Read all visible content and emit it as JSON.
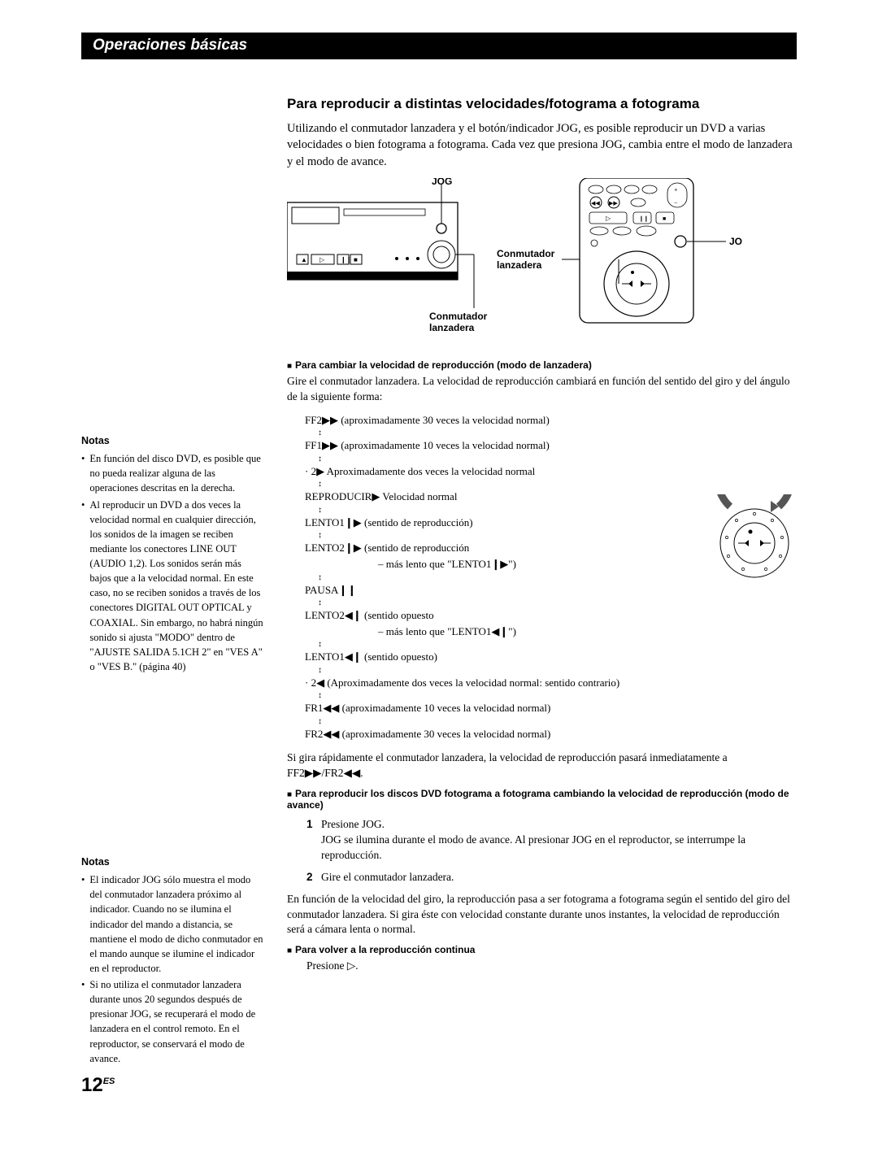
{
  "header": {
    "title": "Operaciones básicas"
  },
  "notes1": {
    "title": "Notas",
    "items": [
      "En función del disco DVD, es posible que no pueda realizar alguna de las operaciones descritas en la derecha.",
      "Al reproducir un DVD a dos veces la velocidad normal en cualquier dirección, los sonidos de la imagen se reciben mediante los conectores LINE OUT (AUDIO 1,2). Los sonidos serán más bajos que a la velocidad normal. En este caso, no se reciben sonidos a través de los conectores DIGITAL OUT OPTICAL y COAXIAL. Sin embargo, no habrá ningún sonido si ajusta \"MODO\" dentro de \"AJUSTE SALIDA 5.1CH 2\" en \"VES A\" o \"VES B.\" (página 40)"
    ]
  },
  "notes2": {
    "title": "Notas",
    "items": [
      "El indicador JOG sólo muestra el modo del conmutador lanzadera próximo al indicador. Cuando no se ilumina el indicador del mando a distancia, se mantiene el modo de dicho conmutador en el mando aunque se ilumine el indicador en el reproductor.",
      "Si no utiliza el conmutador lanzadera durante unos 20 segundos después de presionar JOG, se recuperará el modo de lanzadera en el control remoto. En el reproductor, se conservará el modo de avance."
    ]
  },
  "main": {
    "title": "Para reproducir a distintas velocidades/fotograma a fotograma",
    "intro": "Utilizando el conmutador lanzadera y el botón/indicador JOG, es posible reproducir un DVD a varias velocidades o bien fotograma a fotograma. Cada vez que presiona JOG, cambia entre el modo de lanzadera y el modo de avance.",
    "diagram": {
      "jog": "JOG",
      "shuttle1": "Conmutador\nlanzadera",
      "shuttle2": "Conmutador\nlanzadera"
    },
    "sub1": {
      "title": "Para cambiar la velocidad de reproducción (modo de lanzadera)",
      "text": "Gire el conmutador lanzadera. La velocidad de reproducción cambiará en función del sentido del giro y del ángulo de la siguiente forma:"
    },
    "speeds": [
      {
        "label": "FF2",
        "icon": "▶▶",
        "desc": "(aproximadamente 30 veces la velocidad normal)"
      },
      {
        "label": "FF1",
        "icon": "▶▶",
        "desc": "(aproximadamente 10 veces la velocidad normal)"
      },
      {
        "label": "· 2",
        "icon": "▶",
        "desc": "Aproximadamente dos veces la velocidad normal"
      },
      {
        "label": "REPRODUCIR",
        "icon": "▶",
        "desc": "Velocidad normal"
      },
      {
        "label": "LENTO1",
        "icon": "❙▶",
        "desc": "(sentido de reproducción)"
      },
      {
        "label": "LENTO2",
        "icon": "❙▶",
        "desc": "(sentido de reproducción",
        "desc2": "– más lento que \"LENTO1❙▶\")"
      },
      {
        "label": "PAUSA",
        "icon": "❙❙",
        "desc": ""
      },
      {
        "label": "LENTO2",
        "icon": "◀❙",
        "desc": "(sentido opuesto",
        "desc2": "– más lento que \"LENTO1◀❙\")"
      },
      {
        "label": "LENTO1",
        "icon": "◀❙",
        "desc": "(sentido opuesto)"
      },
      {
        "label": "· 2",
        "icon": "◀",
        "desc": "(Aproximadamente dos veces la velocidad normal: sentido contrario)"
      },
      {
        "label": "FR1",
        "icon": "◀◀",
        "desc": "(aproximadamente 10 veces la velocidad normal)"
      },
      {
        "label": "FR2",
        "icon": "◀◀",
        "desc": "(aproximadamente 30 veces la velocidad normal)"
      }
    ],
    "after_speeds": "Si gira rápidamente el conmutador lanzadera, la velocidad de reproducción pasará inmediatamente a FF2▶▶/FR2◀◀.",
    "sub2": {
      "title": "Para reproducir los discos DVD fotograma a fotograma cambiando la velocidad de reproducción (modo de avance)",
      "steps": [
        {
          "n": "1",
          "t": "Presione JOG.",
          "t2": "JOG se ilumina durante el modo de avance. Al presionar JOG en el reproductor, se interrumpe la reproducción."
        },
        {
          "n": "2",
          "t": "Gire el conmutador lanzadera."
        }
      ],
      "after": "En función de la velocidad del giro, la reproducción pasa a ser fotograma a fotograma según el sentido del giro del conmutador lanzadera. Si gira éste con velocidad constante durante unos instantes, la velocidad de reproducción será a cámara lenta o normal."
    },
    "sub3": {
      "title": "Para volver a la reproducción continua",
      "text": "Presione ▷."
    }
  },
  "page": {
    "num": "12",
    "suffix": "ES"
  }
}
